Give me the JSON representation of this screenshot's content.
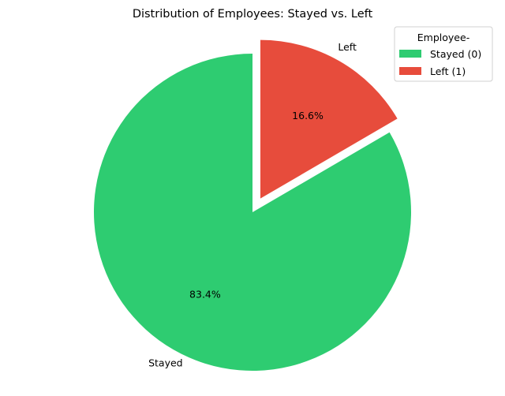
{
  "chart_data": {
    "type": "pie",
    "title": "Distribution of Employees: Stayed vs. Left",
    "slices": [
      {
        "label": "Stayed",
        "value": 83.4,
        "pct_label": "83.4%",
        "color": "#2ecc71",
        "exploded": false
      },
      {
        "label": "Left",
        "value": 16.6,
        "pct_label": "16.6%",
        "color": "#e74c3c",
        "exploded": true
      }
    ],
    "start_angle_deg": 90,
    "direction": "counterclockwise",
    "legend": {
      "title": "Employee-",
      "position": "top-right",
      "entries": [
        {
          "label": "Stayed (0)",
          "color": "#2ecc71"
        },
        {
          "label": "Left (1)",
          "color": "#e74c3c"
        }
      ]
    }
  }
}
